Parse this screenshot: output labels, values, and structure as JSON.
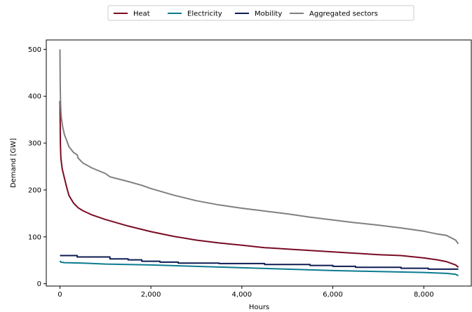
{
  "chart_data": {
    "type": "line",
    "title": "",
    "xlabel": "Hours",
    "ylabel": "Demand [GW]",
    "xlim": [
      -300,
      9060
    ],
    "ylim": [
      -5,
      520
    ],
    "xticks": [
      {
        "value": 0,
        "label": "0"
      },
      {
        "value": 2000,
        "label": "2,000"
      },
      {
        "value": 4000,
        "label": "4,000"
      },
      {
        "value": 6000,
        "label": "6,000"
      },
      {
        "value": 8000,
        "label": "8,000"
      }
    ],
    "yticks": [
      {
        "value": 0,
        "label": "0"
      },
      {
        "value": 100,
        "label": "100"
      },
      {
        "value": 200,
        "label": "200"
      },
      {
        "value": 300,
        "label": "300"
      },
      {
        "value": 400,
        "label": "400"
      },
      {
        "value": 500,
        "label": "500"
      }
    ],
    "grid": false,
    "legend_position": "top-center",
    "series": [
      {
        "name": "Heat",
        "color": "#7a0b23",
        "x": [
          0,
          10,
          20,
          50,
          100,
          150,
          200,
          300,
          400,
          500,
          700,
          1000,
          1500,
          2000,
          2500,
          3000,
          3500,
          4000,
          4500,
          5000,
          5500,
          6000,
          6500,
          7000,
          7500,
          8000,
          8300,
          8500,
          8700,
          8760
        ],
        "y": [
          390,
          300,
          268,
          245,
          225,
          205,
          188,
          172,
          162,
          156,
          147,
          137,
          123,
          111,
          101,
          93,
          87,
          82,
          77,
          74,
          71,
          68,
          65,
          62,
          60,
          55,
          51,
          47,
          40,
          35
        ]
      },
      {
        "name": "Electricity",
        "color": "#0b7b90",
        "x": [
          0,
          20,
          100,
          500,
          1000,
          2000,
          3000,
          4000,
          5000,
          6000,
          7000,
          8000,
          8500,
          8700,
          8760
        ],
        "y": [
          49,
          46,
          45,
          44,
          42,
          40,
          37,
          34,
          31,
          28,
          26,
          24,
          22,
          20,
          17
        ]
      },
      {
        "name": "Mobility",
        "color": "#0d1b52",
        "x": [
          0,
          380,
          380,
          1100,
          1100,
          1500,
          1500,
          1800,
          1800,
          2200,
          2200,
          2600,
          2600,
          3500,
          3500,
          4500,
          4500,
          5500,
          5500,
          6000,
          6000,
          6500,
          6500,
          7500,
          7500,
          8100,
          8100,
          8760
        ],
        "y": [
          60,
          60,
          57,
          57,
          53,
          53,
          51,
          51,
          48,
          48,
          46,
          46,
          44,
          44,
          43,
          43,
          41,
          41,
          39,
          39,
          37,
          37,
          35,
          35,
          33,
          33,
          31,
          31
        ]
      },
      {
        "name": "Aggregated sectors",
        "color": "#808080",
        "x": [
          0,
          5,
          15,
          30,
          60,
          100,
          150,
          200,
          300,
          380,
          400,
          500,
          700,
          1000,
          1100,
          1500,
          1800,
          2000,
          2500,
          3000,
          3500,
          4000,
          4500,
          5000,
          5500,
          6000,
          6500,
          7000,
          7500,
          8000,
          8300,
          8500,
          8700,
          8760
        ],
        "y": [
          500,
          430,
          380,
          355,
          335,
          318,
          305,
          292,
          280,
          275,
          268,
          258,
          247,
          235,
          228,
          218,
          210,
          203,
          189,
          177,
          168,
          161,
          155,
          149,
          142,
          136,
          130,
          125,
          119,
          112,
          106,
          103,
          93,
          85
        ]
      }
    ]
  }
}
